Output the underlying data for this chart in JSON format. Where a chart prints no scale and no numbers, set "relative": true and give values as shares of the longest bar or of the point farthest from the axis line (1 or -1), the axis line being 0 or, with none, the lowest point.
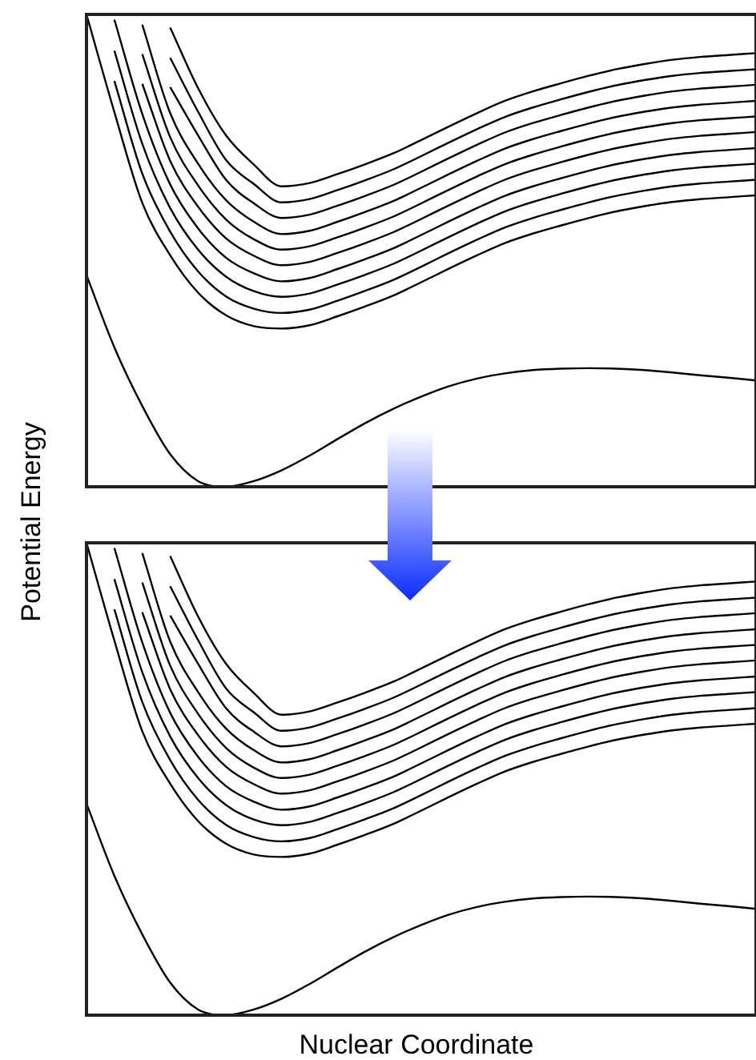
{
  "chart_data": [
    {
      "type": "line",
      "relative": true,
      "tick_labels": false,
      "ylabel": "Potential Energy",
      "categories": [
        null,
        null,
        null,
        null,
        null,
        null,
        null,
        null,
        null,
        null,
        null,
        null,
        null,
        null,
        null,
        null,
        null,
        null,
        null,
        null,
        null,
        null,
        null,
        null,
        null
      ],
      "series": [
        {
          "color": "#000000",
          "values": [
            0.448,
            0.295,
            0.171,
            0.069,
            0.012,
            0,
            0.012,
            0.035,
            0.066,
            0.101,
            0.135,
            0.165,
            0.191,
            0.213,
            0.229,
            0.24,
            0.247,
            0.25,
            0.251,
            0.25,
            0.247,
            0.242,
            0.236,
            0.231,
            0.225
          ]
        },
        {
          "color": "#000000",
          "values": [
            1,
            0.793,
            0.601,
            0.49,
            0.411,
            0.363,
            0.34,
            0.335,
            0.342,
            0.361,
            0.382,
            0.405,
            0.433,
            0.462,
            0.49,
            0.516,
            0.536,
            0.553,
            0.569,
            0.583,
            0.594,
            0.603,
            0.609,
            0.613,
            0.617
          ]
        },
        {
          "color": "#000000",
          "values": [
            null,
            0.859,
            0.663,
            0.54,
            0.456,
            0.403,
            0.377,
            0.368,
            0.375,
            0.394,
            0.415,
            0.438,
            0.466,
            0.495,
            0.523,
            0.549,
            0.569,
            0.586,
            0.602,
            0.616,
            0.627,
            0.636,
            0.642,
            0.646,
            0.65
          ]
        },
        {
          "color": "#000000",
          "values": [
            null,
            0.923,
            0.726,
            0.59,
            0.502,
            0.445,
            0.414,
            0.402,
            0.409,
            0.428,
            0.449,
            0.472,
            0.5,
            0.529,
            0.557,
            0.583,
            0.603,
            0.62,
            0.636,
            0.65,
            0.661,
            0.67,
            0.676,
            0.68,
            0.684
          ]
        },
        {
          "color": "#000000",
          "values": [
            null,
            0.989,
            0.789,
            0.64,
            0.547,
            0.485,
            0.452,
            0.435,
            0.442,
            0.461,
            0.482,
            0.505,
            0.533,
            0.562,
            0.59,
            0.616,
            0.636,
            0.653,
            0.669,
            0.683,
            0.694,
            0.703,
            0.709,
            0.713,
            0.717
          ]
        },
        {
          "color": "#000000",
          "values": [
            null,
            null,
            0.853,
            0.69,
            0.593,
            0.526,
            0.489,
            0.469,
            0.476,
            0.495,
            0.516,
            0.539,
            0.567,
            0.596,
            0.624,
            0.65,
            0.67,
            0.687,
            0.703,
            0.717,
            0.728,
            0.737,
            0.743,
            0.747,
            0.751
          ]
        },
        {
          "color": "#000000",
          "values": [
            null,
            null,
            0.916,
            0.74,
            0.638,
            0.566,
            0.524,
            0.502,
            0.509,
            0.528,
            0.549,
            0.572,
            0.6,
            0.629,
            0.657,
            0.683,
            0.703,
            0.72,
            0.736,
            0.75,
            0.761,
            0.77,
            0.776,
            0.78,
            0.784
          ]
        },
        {
          "color": "#000000",
          "values": [
            null,
            null,
            0.978,
            0.791,
            0.684,
            0.607,
            0.561,
            0.535,
            0.542,
            0.561,
            0.582,
            0.605,
            0.633,
            0.662,
            0.69,
            0.716,
            0.736,
            0.753,
            0.769,
            0.783,
            0.794,
            0.803,
            0.809,
            0.813,
            0.817
          ]
        },
        {
          "color": "#000000",
          "values": [
            null,
            null,
            null,
            0.846,
            0.744,
            0.65,
            0.6,
            0.569,
            0.576,
            0.595,
            0.616,
            0.639,
            0.667,
            0.696,
            0.724,
            0.75,
            0.77,
            0.787,
            0.803,
            0.817,
            0.828,
            0.837,
            0.843,
            0.847,
            0.851
          ]
        },
        {
          "color": "#000000",
          "values": [
            null,
            null,
            null,
            0.908,
            0.794,
            0.692,
            0.641,
            0.602,
            0.609,
            0.628,
            0.649,
            0.672,
            0.7,
            0.729,
            0.757,
            0.783,
            0.803,
            0.82,
            0.836,
            0.85,
            0.861,
            0.87,
            0.876,
            0.88,
            0.884
          ]
        },
        {
          "color": "#000000",
          "values": [
            null,
            null,
            null,
            0.972,
            0.844,
            0.744,
            0.682,
            0.636,
            0.643,
            0.662,
            0.683,
            0.706,
            0.734,
            0.763,
            0.791,
            0.817,
            0.837,
            0.854,
            0.87,
            0.884,
            0.895,
            0.904,
            0.91,
            0.914,
            0.918
          ]
        }
      ]
    },
    {
      "type": "line",
      "relative": true,
      "tick_labels": false,
      "xlabel": "Nuclear Coordinate",
      "categories": [
        null,
        null,
        null,
        null,
        null,
        null,
        null,
        null,
        null,
        null,
        null,
        null,
        null,
        null,
        null,
        null,
        null,
        null,
        null,
        null,
        null,
        null,
        null,
        null,
        null
      ],
      "series": [
        {
          "color": "#000000",
          "values": [
            0.448,
            0.295,
            0.171,
            0.069,
            0.012,
            0,
            0.012,
            0.035,
            0.066,
            0.101,
            0.135,
            0.165,
            0.191,
            0.213,
            0.229,
            0.24,
            0.247,
            0.25,
            0.251,
            0.25,
            0.247,
            0.242,
            0.236,
            0.231,
            0.225
          ]
        },
        {
          "color": "#000000",
          "values": [
            1,
            0.793,
            0.601,
            0.49,
            0.411,
            0.363,
            0.34,
            0.335,
            0.342,
            0.361,
            0.382,
            0.405,
            0.433,
            0.462,
            0.49,
            0.516,
            0.536,
            0.553,
            0.569,
            0.583,
            0.594,
            0.603,
            0.609,
            0.613,
            0.617
          ]
        },
        {
          "color": "#000000",
          "values": [
            null,
            0.859,
            0.663,
            0.54,
            0.456,
            0.403,
            0.377,
            0.368,
            0.375,
            0.394,
            0.415,
            0.438,
            0.466,
            0.495,
            0.523,
            0.549,
            0.569,
            0.586,
            0.602,
            0.616,
            0.627,
            0.636,
            0.642,
            0.646,
            0.65
          ]
        },
        {
          "color": "#000000",
          "values": [
            null,
            0.923,
            0.726,
            0.59,
            0.502,
            0.445,
            0.414,
            0.402,
            0.409,
            0.428,
            0.449,
            0.472,
            0.5,
            0.529,
            0.557,
            0.583,
            0.603,
            0.62,
            0.636,
            0.65,
            0.661,
            0.67,
            0.676,
            0.68,
            0.684
          ]
        },
        {
          "color": "#000000",
          "values": [
            null,
            0.989,
            0.789,
            0.64,
            0.547,
            0.485,
            0.452,
            0.435,
            0.442,
            0.461,
            0.482,
            0.505,
            0.533,
            0.562,
            0.59,
            0.616,
            0.636,
            0.653,
            0.669,
            0.683,
            0.694,
            0.703,
            0.709,
            0.713,
            0.717
          ]
        },
        {
          "color": "#000000",
          "values": [
            null,
            null,
            0.853,
            0.69,
            0.593,
            0.526,
            0.489,
            0.469,
            0.476,
            0.495,
            0.516,
            0.539,
            0.567,
            0.596,
            0.624,
            0.65,
            0.67,
            0.687,
            0.703,
            0.717,
            0.728,
            0.737,
            0.743,
            0.747,
            0.751
          ]
        },
        {
          "color": "#000000",
          "values": [
            null,
            null,
            0.916,
            0.74,
            0.638,
            0.566,
            0.524,
            0.502,
            0.509,
            0.528,
            0.549,
            0.572,
            0.6,
            0.629,
            0.657,
            0.683,
            0.703,
            0.72,
            0.736,
            0.75,
            0.761,
            0.77,
            0.776,
            0.78,
            0.784
          ]
        },
        {
          "color": "#000000",
          "values": [
            null,
            null,
            0.978,
            0.791,
            0.684,
            0.607,
            0.561,
            0.535,
            0.542,
            0.561,
            0.582,
            0.605,
            0.633,
            0.662,
            0.69,
            0.716,
            0.736,
            0.753,
            0.769,
            0.783,
            0.794,
            0.803,
            0.809,
            0.813,
            0.817
          ]
        },
        {
          "color": "#000000",
          "values": [
            null,
            null,
            null,
            0.846,
            0.744,
            0.65,
            0.6,
            0.569,
            0.576,
            0.595,
            0.616,
            0.639,
            0.667,
            0.696,
            0.724,
            0.75,
            0.77,
            0.787,
            0.803,
            0.817,
            0.828,
            0.837,
            0.843,
            0.847,
            0.851
          ]
        },
        {
          "color": "#000000",
          "values": [
            null,
            null,
            null,
            0.908,
            0.794,
            0.692,
            0.641,
            0.602,
            0.609,
            0.628,
            0.649,
            0.672,
            0.7,
            0.729,
            0.757,
            0.783,
            0.803,
            0.82,
            0.836,
            0.85,
            0.861,
            0.87,
            0.876,
            0.88,
            0.884
          ]
        },
        {
          "color": "#000000",
          "values": [
            null,
            null,
            null,
            0.972,
            0.844,
            0.744,
            0.682,
            0.636,
            0.643,
            0.662,
            0.683,
            0.706,
            0.734,
            0.763,
            0.791,
            0.817,
            0.837,
            0.854,
            0.87,
            0.884,
            0.895,
            0.904,
            0.91,
            0.914,
            0.918
          ]
        }
      ]
    }
  ]
}
